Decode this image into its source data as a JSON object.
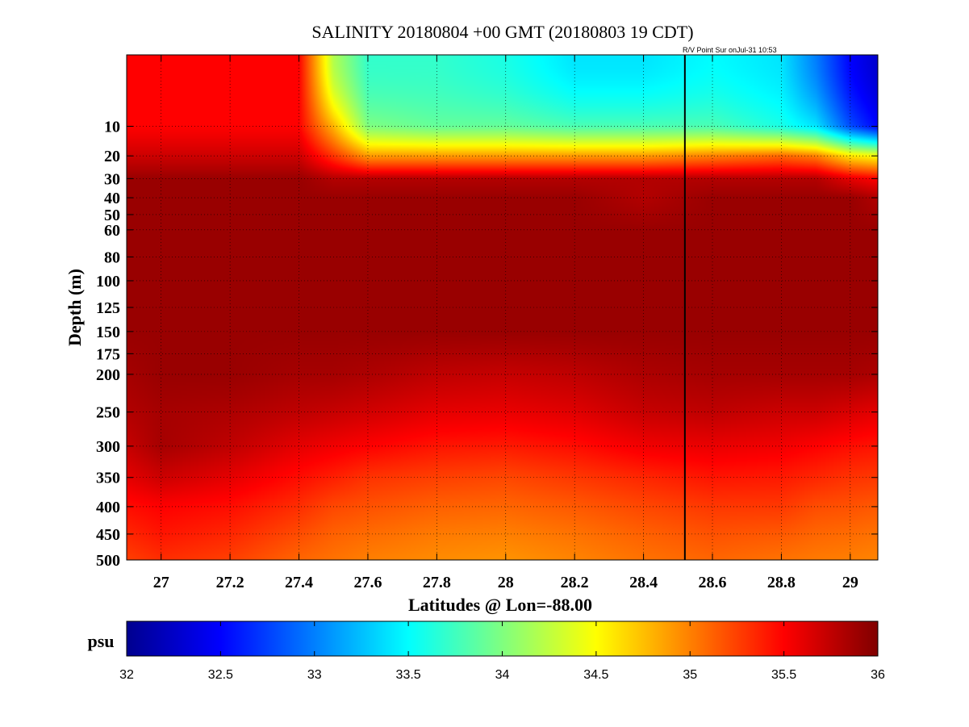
{
  "chart_data": {
    "type": "heatmap",
    "title": "SALINITY 20180804 +00 GMT (20180803 19 CDT)",
    "annotation": "R/V Point Sur onJul-31 10:53",
    "xlabel": "Latitudes @ Lon=-88.00",
    "ylabel": "Depth (m)",
    "xlim": [
      26.9,
      29.08
    ],
    "ylim": [
      0,
      500
    ],
    "y_axis_scale": "sqrt",
    "y_reversed": true,
    "grid": true,
    "x_ticks": [
      27,
      27.2,
      27.4,
      27.6,
      27.8,
      28,
      28.2,
      28.4,
      28.6,
      28.8,
      29
    ],
    "x_tick_labels": [
      "27",
      "27.2",
      "27.4",
      "27.6",
      "27.8",
      "28",
      "28.2",
      "28.4",
      "28.6",
      "28.8",
      "29"
    ],
    "y_ticks": [
      10,
      20,
      30,
      40,
      50,
      60,
      80,
      100,
      125,
      150,
      175,
      200,
      250,
      300,
      350,
      400,
      450,
      500
    ],
    "y_tick_labels": [
      "10",
      "20",
      "30",
      "40",
      "50",
      "60",
      "80",
      "100",
      "125",
      "150",
      "175",
      "200",
      "250",
      "300",
      "350",
      "400",
      "450",
      "500"
    ],
    "vertical_line_x": 28.52,
    "colorbar": {
      "unit": "psu",
      "range": [
        32,
        36
      ],
      "ticks": [
        32,
        32.5,
        33,
        33.5,
        34,
        34.5,
        35,
        35.5,
        36
      ],
      "tick_labels": [
        "32",
        "32.5",
        "33",
        "33.5",
        "34",
        "34.5",
        "35",
        "35.5",
        "36"
      ],
      "colormap": "jet"
    },
    "lat_samples": [
      26.9,
      27.0,
      27.2,
      27.4,
      27.5,
      27.6,
      27.8,
      28.0,
      28.2,
      28.4,
      28.6,
      28.8,
      28.9,
      29.0,
      29.08
    ],
    "depth_samples": [
      0,
      10,
      20,
      30,
      40,
      60,
      100,
      150,
      200,
      250,
      300,
      350,
      400,
      450,
      500
    ],
    "salinity": [
      [
        35.5,
        35.5,
        35.5,
        35.5,
        34.2,
        33.7,
        33.7,
        33.6,
        33.4,
        33.4,
        33.5,
        33.4,
        33.0,
        32.5,
        32.3
      ],
      [
        35.5,
        35.5,
        35.5,
        35.5,
        34.8,
        34.0,
        33.9,
        33.9,
        33.8,
        33.8,
        33.8,
        33.6,
        33.4,
        32.8,
        32.5
      ],
      [
        35.7,
        35.7,
        35.7,
        35.7,
        35.3,
        34.9,
        34.9,
        34.9,
        34.9,
        34.9,
        35.0,
        35.1,
        35.0,
        34.6,
        34.5
      ],
      [
        35.9,
        35.9,
        35.9,
        35.9,
        35.8,
        35.8,
        35.8,
        35.8,
        35.8,
        35.8,
        35.8,
        35.8,
        35.8,
        35.6,
        35.5
      ],
      [
        35.9,
        35.9,
        35.9,
        35.9,
        35.9,
        35.9,
        35.9,
        35.9,
        35.9,
        35.8,
        35.9,
        35.9,
        35.9,
        35.9,
        35.8
      ],
      [
        35.9,
        35.9,
        35.9,
        35.9,
        35.9,
        35.9,
        35.9,
        35.9,
        35.9,
        35.9,
        35.9,
        35.9,
        35.9,
        35.9,
        35.9
      ],
      [
        35.9,
        35.9,
        35.9,
        35.9,
        35.9,
        35.9,
        35.9,
        35.9,
        35.9,
        35.9,
        35.9,
        35.9,
        35.9,
        35.9,
        35.9
      ],
      [
        35.9,
        35.9,
        35.9,
        35.9,
        35.9,
        35.9,
        35.9,
        35.9,
        35.9,
        35.9,
        35.9,
        35.9,
        35.9,
        35.9,
        35.9
      ],
      [
        35.85,
        35.9,
        35.9,
        35.85,
        35.85,
        35.82,
        35.75,
        35.72,
        35.75,
        35.82,
        35.85,
        35.85,
        35.85,
        35.85,
        35.82
      ],
      [
        35.8,
        35.85,
        35.82,
        35.75,
        35.72,
        35.68,
        35.6,
        35.58,
        35.62,
        35.72,
        35.75,
        35.7,
        35.7,
        35.65,
        35.6
      ],
      [
        35.72,
        35.85,
        35.75,
        35.6,
        35.55,
        35.5,
        35.42,
        35.4,
        35.45,
        35.55,
        35.58,
        35.55,
        35.5,
        35.45,
        35.42
      ],
      [
        35.6,
        35.7,
        35.6,
        35.45,
        35.38,
        35.3,
        35.25,
        35.22,
        35.28,
        35.35,
        35.42,
        35.4,
        35.35,
        35.3,
        35.28
      ],
      [
        35.45,
        35.5,
        35.45,
        35.32,
        35.22,
        35.18,
        35.12,
        35.1,
        35.15,
        35.22,
        35.28,
        35.28,
        35.2,
        35.18,
        35.15
      ],
      [
        35.35,
        35.42,
        35.35,
        35.2,
        35.12,
        35.08,
        35.02,
        35.0,
        35.05,
        35.12,
        35.18,
        35.15,
        35.1,
        35.08,
        35.05
      ],
      [
        35.25,
        35.32,
        35.25,
        35.1,
        35.05,
        35.0,
        34.95,
        34.92,
        34.98,
        35.05,
        35.1,
        35.05,
        35.02,
        35.0,
        34.98
      ]
    ]
  }
}
